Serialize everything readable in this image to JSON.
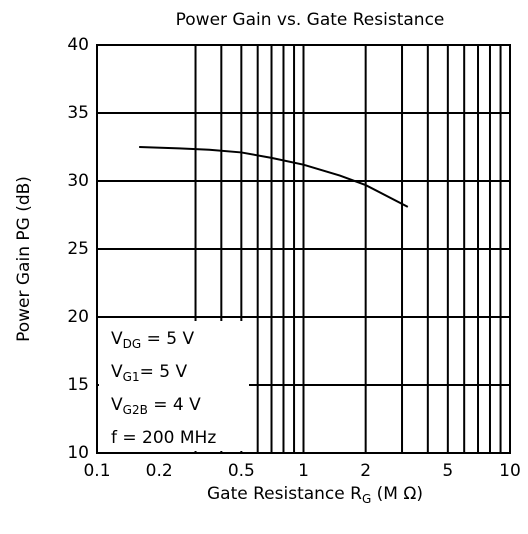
{
  "chart_data": {
    "type": "line",
    "title": "Power Gain vs. Gate Resistance",
    "x_label": {
      "text": "Gate Resistance  R",
      "sub": "G",
      "rest": " (M Ω)"
    },
    "y_label": "Power Gain   PG (dB)",
    "xscale": "log",
    "xlim": [
      0.1,
      10
    ],
    "xticks": [
      0.1,
      0.2,
      0.5,
      1,
      2,
      5,
      10
    ],
    "xgrid": [
      0.3,
      0.4,
      0.5,
      0.6,
      0.7,
      0.8,
      0.9,
      1,
      2,
      3,
      4,
      5,
      6,
      7,
      8,
      9
    ],
    "ylim": [
      10,
      40
    ],
    "yticks": [
      10,
      15,
      20,
      25,
      30,
      35,
      40
    ],
    "grid": true,
    "series": [
      {
        "color": "#000000",
        "x": [
          0.16,
          0.25,
          0.35,
          0.5,
          0.7,
          1,
          1.5,
          2,
          3.2
        ],
        "values": [
          32.5,
          32.4,
          32.3,
          32.1,
          31.7,
          31.2,
          30.4,
          29.7,
          28.1
        ]
      }
    ],
    "annotations": [
      {
        "main": "V",
        "sub": "DG",
        "rest": " = 5 V"
      },
      {
        "main": "V",
        "sub": "G1",
        "rest": "= 5 V"
      },
      {
        "main": "V",
        "sub": "G2B",
        "rest": " = 4 V"
      },
      {
        "main": "f = 200 MHz",
        "sub": "",
        "rest": ""
      }
    ]
  }
}
